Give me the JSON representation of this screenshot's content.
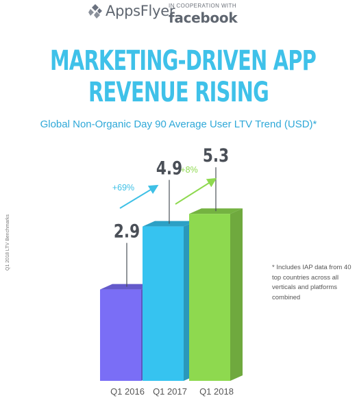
{
  "header": {
    "brand": "AppsFlyer",
    "cooperation_label": "IN COOPERATION WITH",
    "partner": "facebook"
  },
  "title_lines": [
    "MARKETING-DRIVEN APP",
    "REVENUE RISING"
  ],
  "side_note": "Q1 2018 LTV Benchmarks",
  "footnote": "* Includes IAP data from 40 top countries across all verticals and platforms combined",
  "colors": {
    "title": "#3fc1e9",
    "bar_q1_2016": "#7a6ef6",
    "bar_q1_2017": "#36c3f0",
    "bar_q1_2018": "#8ed94f",
    "arrow_1": "#3ec0e6",
    "arrow_2": "#8ed94f",
    "label_text": "#4a4f57"
  },
  "chart_data": {
    "type": "bar",
    "title": "Global Non-Organic Day 90 Average User LTV Trend (USD)*",
    "categories": [
      "Q1 2016",
      "Q1 2017",
      "Q1 2018"
    ],
    "values": [
      2.9,
      4.9,
      5.3
    ],
    "value_labels": [
      "2.9",
      "4.9",
      "5.3"
    ],
    "changes": [
      "+69%",
      "+8%"
    ],
    "unit": "USD",
    "grid": false,
    "legend": "none"
  }
}
